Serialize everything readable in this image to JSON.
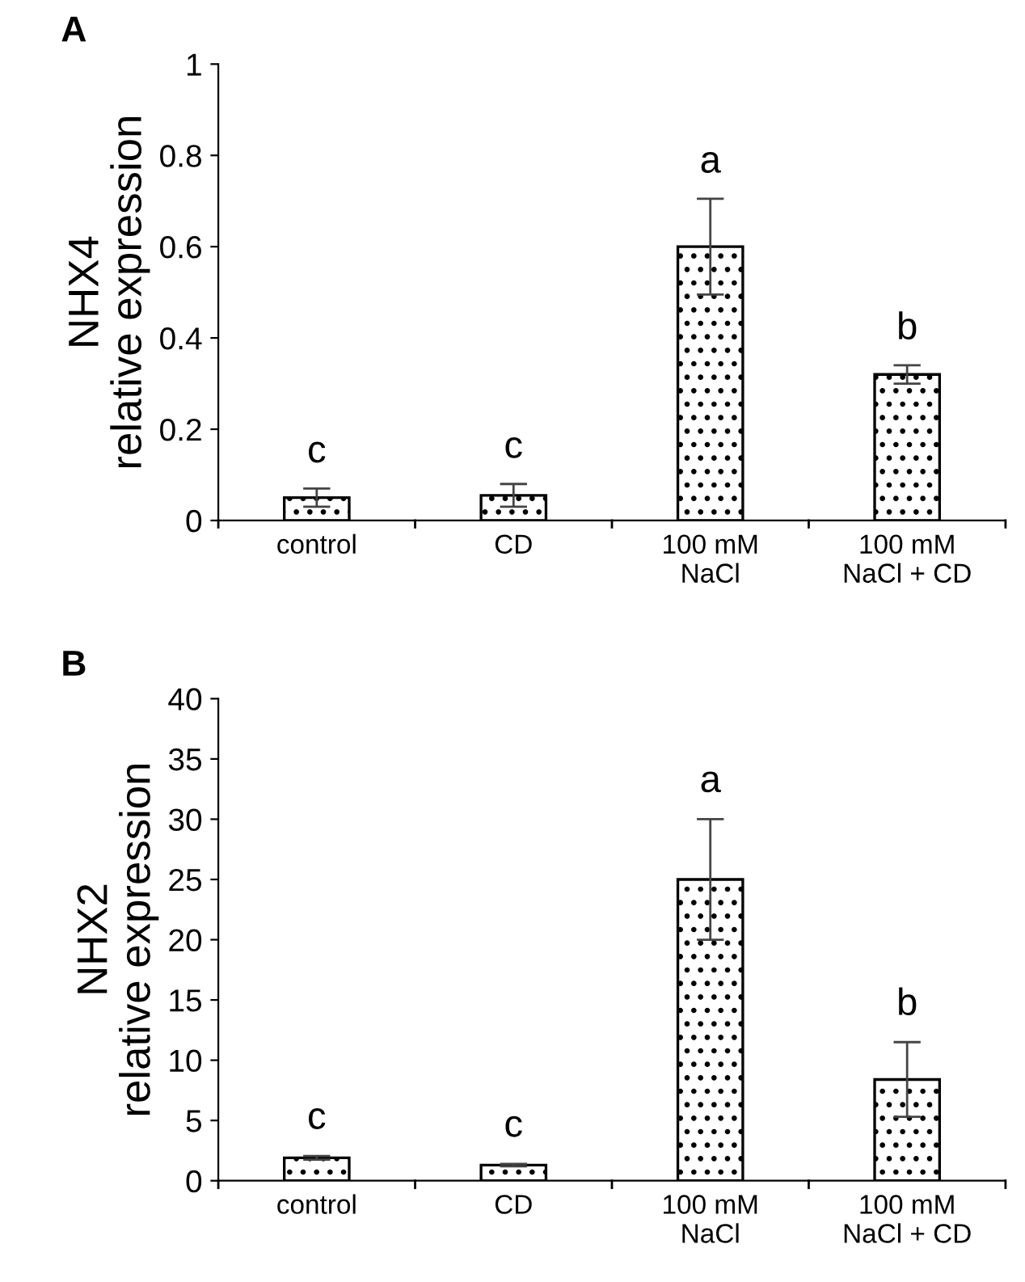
{
  "chart_data": [
    {
      "type": "bar",
      "title": "A",
      "ylabel": "NHX4\nrelative expression",
      "categories": [
        "control",
        "CD",
        "100 mM\nNaCl",
        "100 mM\nNaCl + CD"
      ],
      "values": [
        0.05,
        0.055,
        0.6,
        0.32
      ],
      "errors": [
        0.02,
        0.025,
        0.105,
        0.02
      ],
      "color": "#000000",
      "ylim": [
        0,
        1
      ],
      "yticks": [
        0,
        0.2,
        0.4,
        0.6,
        0.8,
        1
      ],
      "grid": false,
      "annotations": [
        "c",
        "c",
        "a",
        "b"
      ]
    },
    {
      "type": "bar",
      "title": "B",
      "ylabel": "NHX2\nrelative expression",
      "categories": [
        "control",
        "CD",
        "100 mM\nNaCl",
        "100 mM\nNaCl + CD"
      ],
      "values": [
        1.9,
        1.3,
        25,
        8.4
      ],
      "errors": [
        0.15,
        0.1,
        5,
        3.1
      ],
      "color": "#000000",
      "ylim": [
        0,
        40
      ],
      "yticks": [
        0,
        5,
        10,
        15,
        20,
        25,
        30,
        35,
        40
      ],
      "grid": false,
      "annotations": [
        "c",
        "c",
        "a",
        "b"
      ]
    }
  ]
}
